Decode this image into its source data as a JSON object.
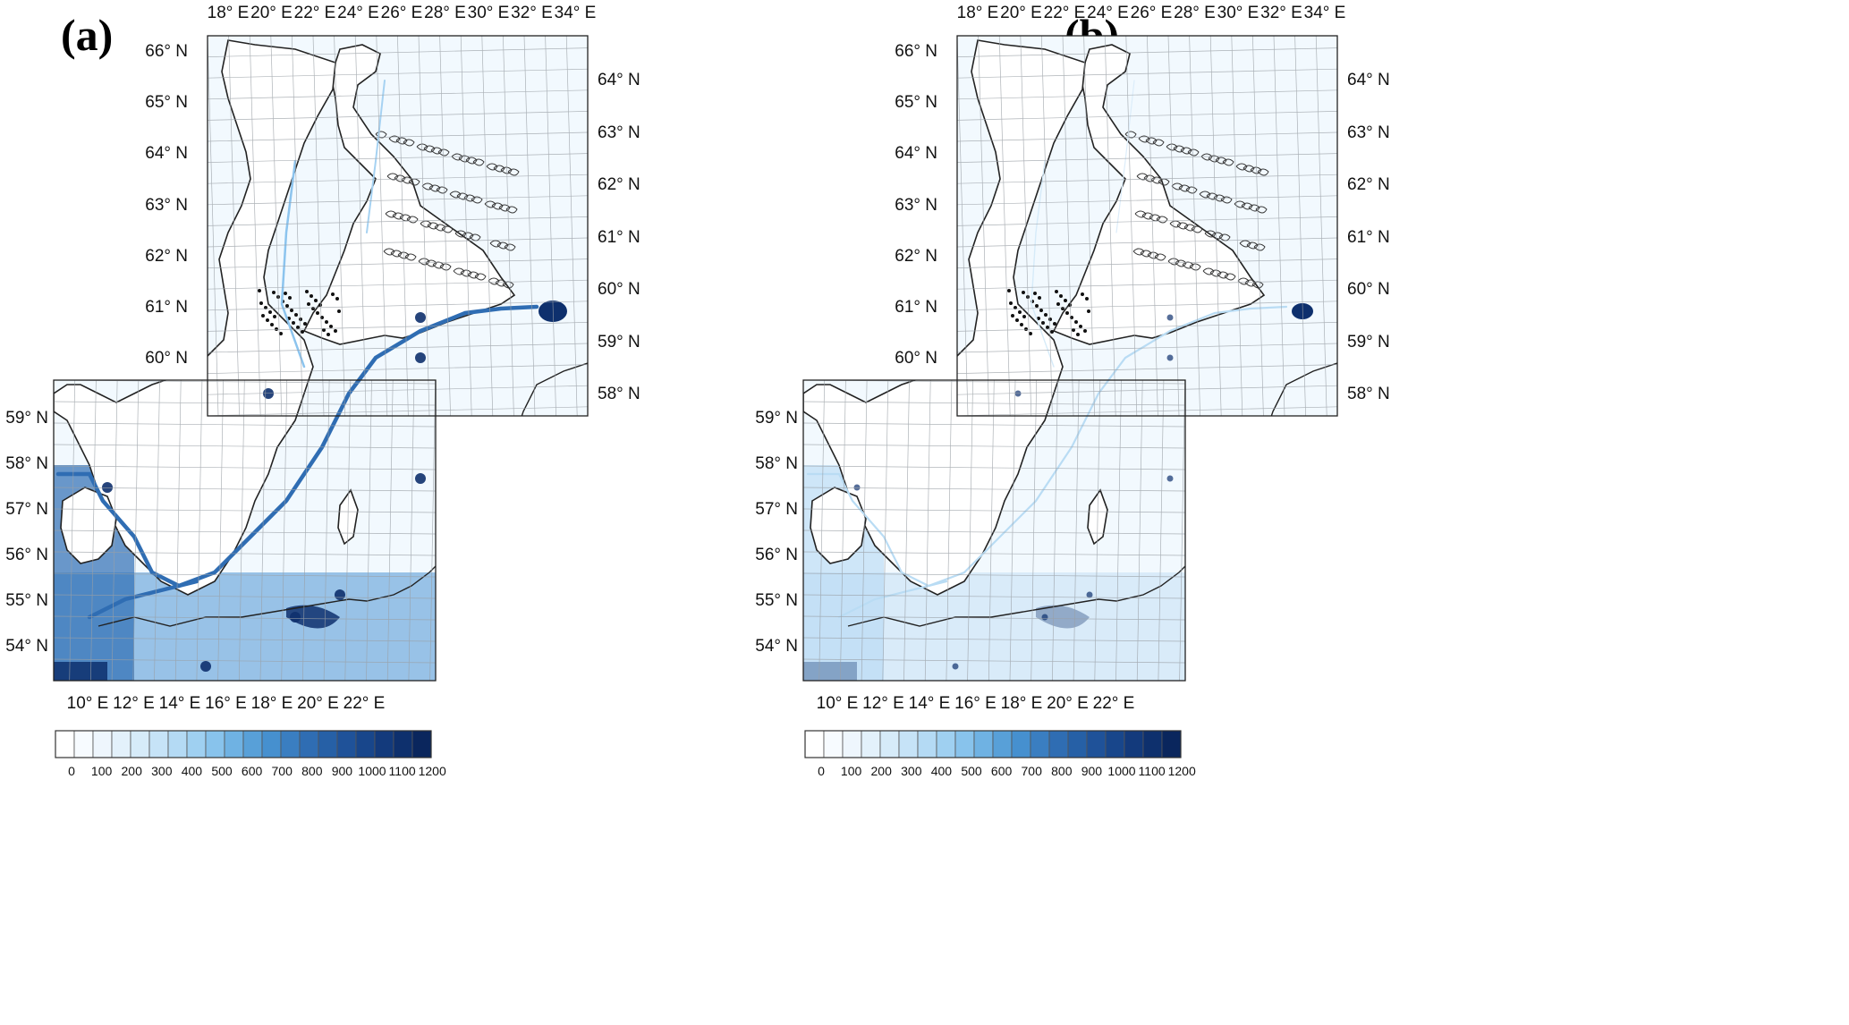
{
  "panels": [
    {
      "label": "(a)",
      "north": {
        "top_ticks": [
          "18° E",
          "20° E",
          "22° E",
          "24° E",
          "26° E",
          "28° E",
          "30° E",
          "32° E",
          "34° E"
        ],
        "left_ticks": [
          "66° N",
          "65° N",
          "64° N",
          "63° N",
          "62° N",
          "61° N",
          "60° N"
        ],
        "right_ticks": [
          "64° N",
          "63° N",
          "62° N",
          "61° N",
          "60° N",
          "59° N",
          "58° N"
        ]
      },
      "south": {
        "left_ticks": [
          "59° N",
          "58° N",
          "57° N",
          "56° N",
          "55° N",
          "54° N"
        ],
        "bottom_ticks": [
          "10° E",
          "12° E",
          "14° E",
          "16° E",
          "18° E",
          "20° E",
          "22° E"
        ]
      },
      "intensity": "high"
    },
    {
      "label": "(b)",
      "north": {
        "top_ticks": [
          "18° E",
          "20° E",
          "22° E",
          "24° E",
          "26° E",
          "28° E",
          "30° E",
          "32° E",
          "34° E"
        ],
        "left_ticks": [
          "66° N",
          "65° N",
          "64° N",
          "63° N",
          "62° N",
          "61° N",
          "60° N"
        ],
        "right_ticks": [
          "64° N",
          "63° N",
          "62° N",
          "61° N",
          "60° N",
          "59° N",
          "58° N"
        ]
      },
      "south": {
        "left_ticks": [
          "59° N",
          "58° N",
          "57° N",
          "56° N",
          "55° N",
          "54° N"
        ],
        "bottom_ticks": [
          "10° E",
          "12° E",
          "14° E",
          "16° E",
          "18° E",
          "20° E",
          "22° E"
        ]
      },
      "intensity": "low"
    }
  ],
  "colorbar": {
    "labels": [
      "0",
      "100",
      "200",
      "300",
      "400",
      "500",
      "600",
      "700",
      "800",
      "900",
      "1000",
      "1100",
      "1200"
    ],
    "colors": [
      "#ffffff",
      "#f7fbff",
      "#eef6fd",
      "#e3f1fb",
      "#d6ebf9",
      "#c6e3f7",
      "#b4daf4",
      "#9fd0f1",
      "#88c3ec",
      "#6fb2e3",
      "#58a0d8",
      "#4690cf",
      "#3a7ec1",
      "#2f6db3",
      "#2660a6",
      "#1f5299",
      "#18468b",
      "#133a7c",
      "#0e306d",
      "#0a265d"
    ]
  },
  "colors": {
    "water_base": "#f2f9fe",
    "land": "#ffffff",
    "coast": "#222222",
    "grid": "#9aa0a6",
    "ship_route": "#2f6db3",
    "heavy": "#0e306d"
  }
}
